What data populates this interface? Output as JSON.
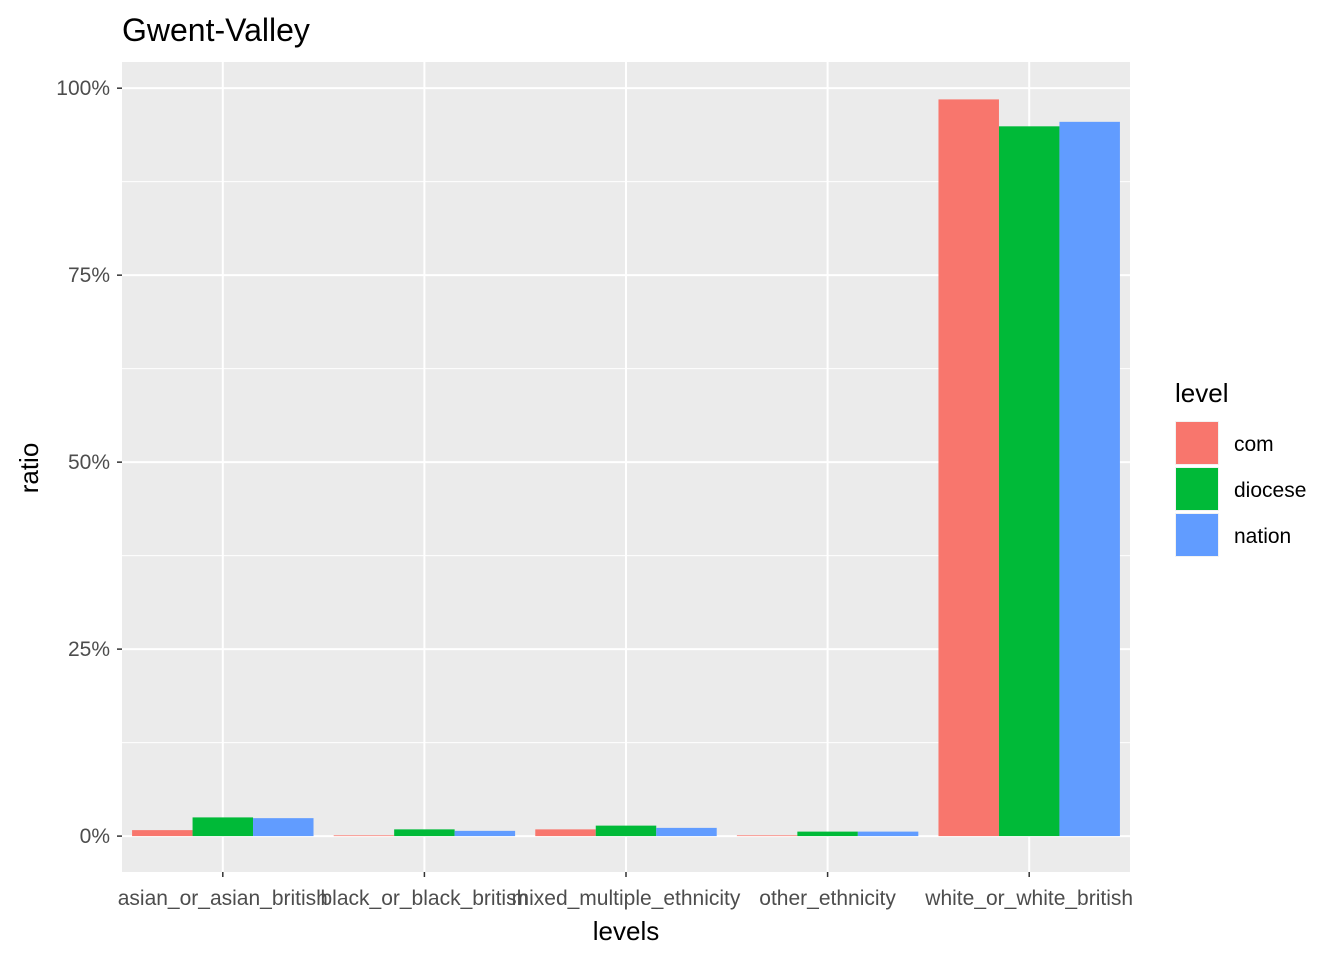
{
  "chart_data": {
    "type": "bar",
    "title": "Gwent-Valley",
    "xlabel": "levels",
    "ylabel": "ratio",
    "categories": [
      "asian_or_asian_british",
      "black_or_black_british",
      "mixed_multiple_ethnicity",
      "other_ethnicity",
      "white_or_white_british"
    ],
    "series": [
      {
        "name": "com",
        "color": "#F8766D",
        "values": [
          0.008,
          0.001,
          0.009,
          0.001,
          0.985
        ]
      },
      {
        "name": "diocese",
        "color": "#00BA38",
        "values": [
          0.025,
          0.009,
          0.014,
          0.006,
          0.949
        ]
      },
      {
        "name": "nation",
        "color": "#619CFF",
        "values": [
          0.024,
          0.007,
          0.011,
          0.006,
          0.955
        ]
      }
    ],
    "ylim": [
      -0.048,
      1.035
    ],
    "yticks": [
      0,
      0.25,
      0.5,
      0.75,
      1.0
    ],
    "ytick_labels": [
      "0%",
      "25%",
      "50%",
      "75%",
      "100%"
    ],
    "legend_title": "level",
    "legend_position": "right",
    "grid": true,
    "panel_background": "#EBEBEB",
    "grid_color": "#FFFFFF"
  }
}
